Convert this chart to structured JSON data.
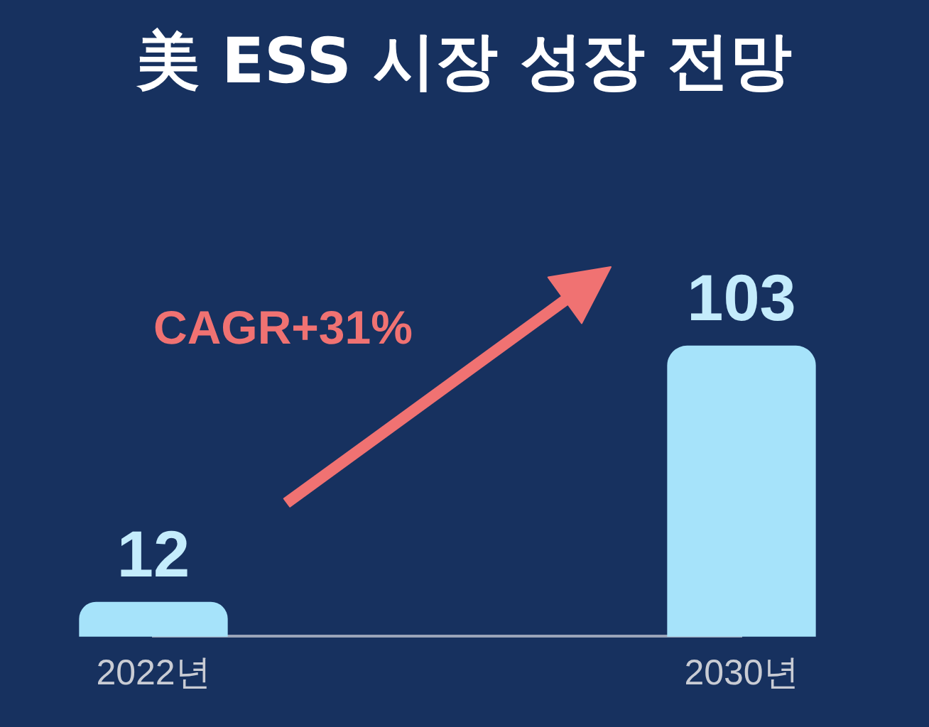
{
  "chart_data": {
    "type": "bar",
    "title": "美 ESS 시장 성장 전망",
    "categories": [
      "2022년",
      "2030년"
    ],
    "values": [
      12,
      103
    ],
    "color": "#a6e3fa",
    "data_labels": true,
    "tick_labels": "x",
    "grid": false,
    "legend": false,
    "annotations": [
      "CAGR+31%"
    ]
  }
}
